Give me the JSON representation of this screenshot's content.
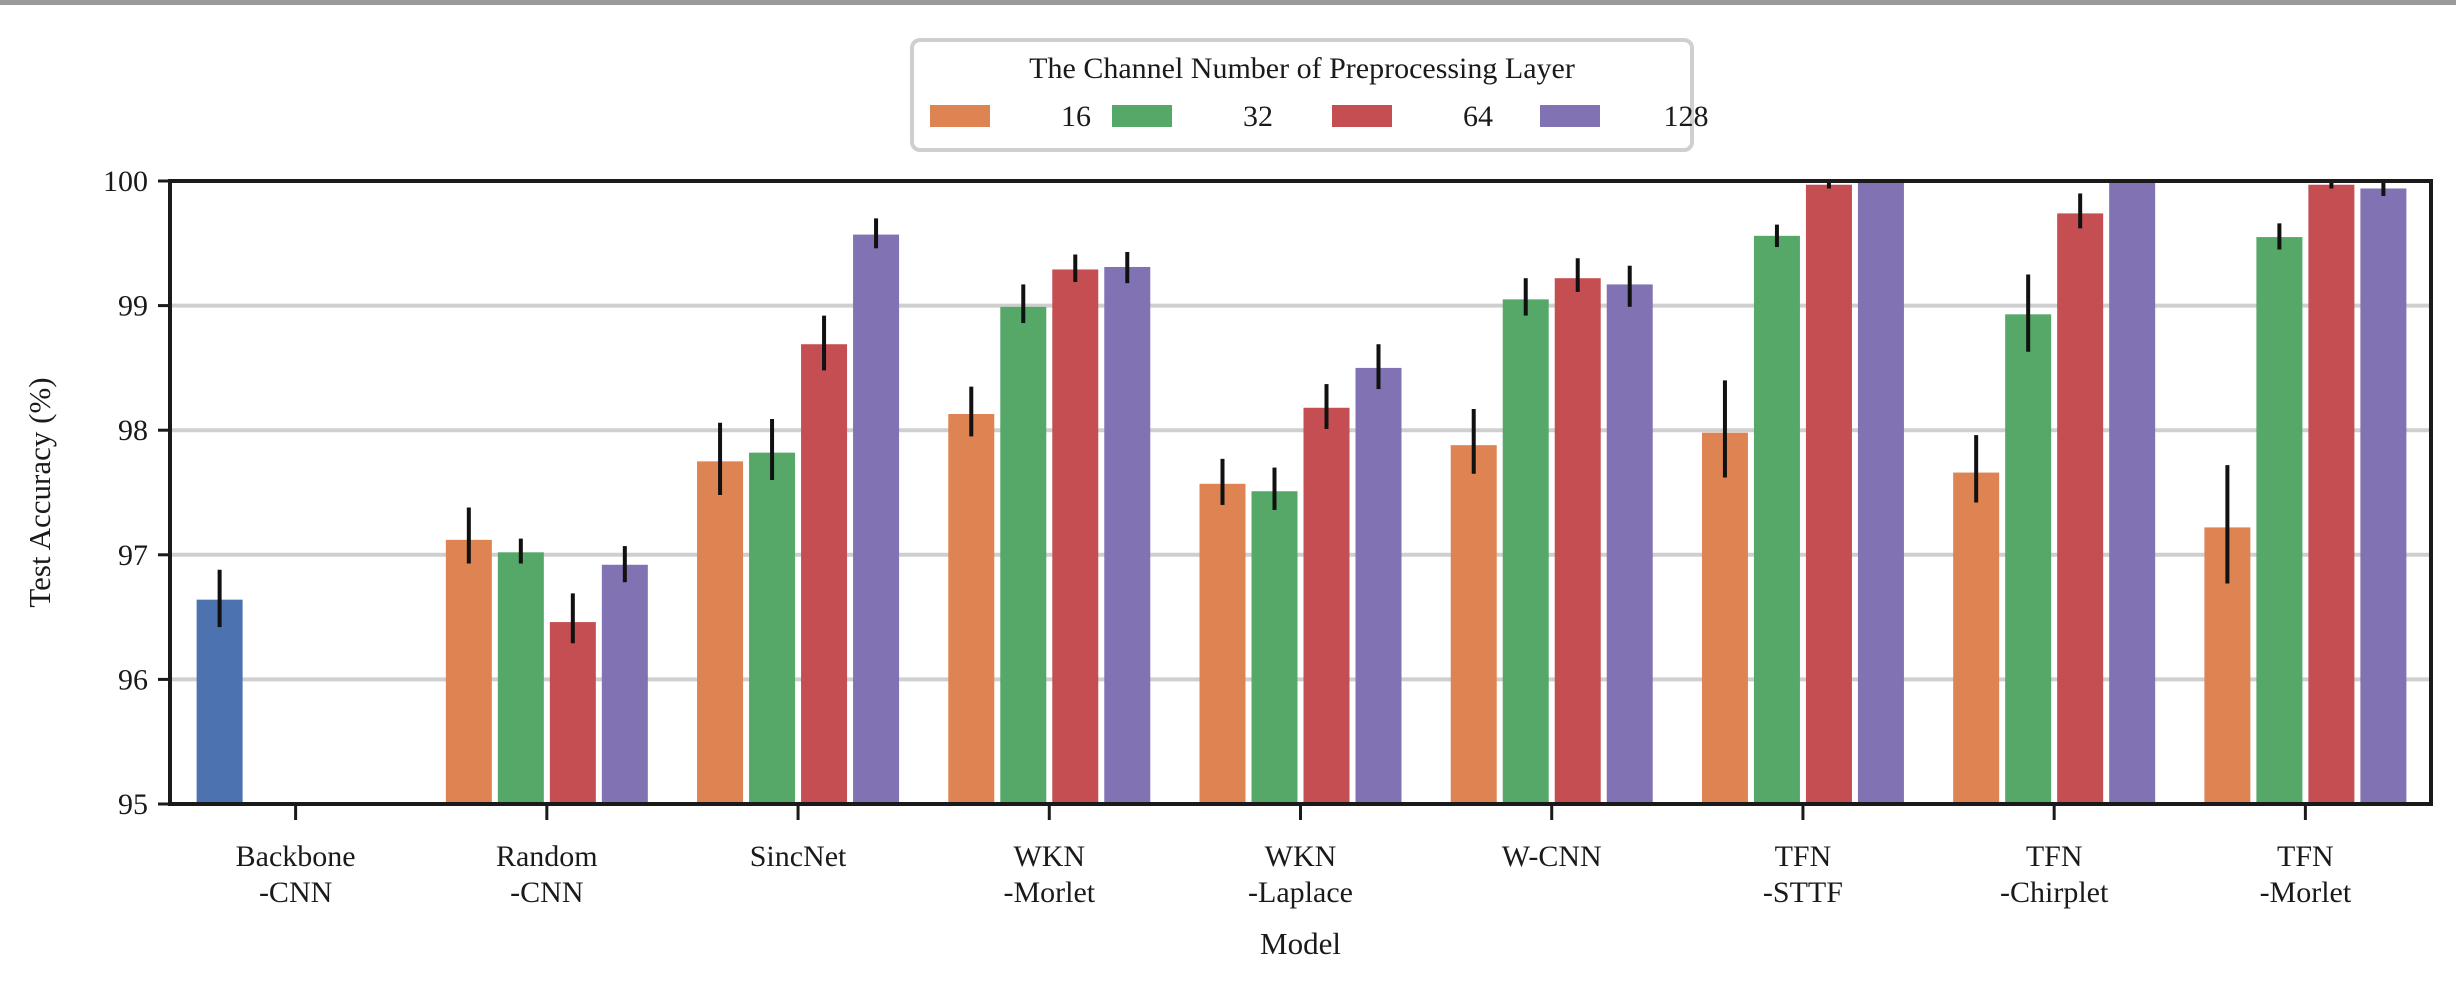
{
  "chart_data": {
    "type": "bar",
    "xlabel": "Model",
    "ylabel": "Test Accuracy (%)",
    "ylim": [
      95,
      100
    ],
    "yticks": [
      95,
      96,
      97,
      98,
      99,
      100
    ],
    "grid": "horizontal",
    "legend": {
      "title": "The Channel Number of Preprocessing Layer",
      "placement": "top-center"
    },
    "categories": [
      [
        "Backbone",
        "-CNN"
      ],
      [
        "Random",
        "-CNN"
      ],
      [
        "SincNet"
      ],
      [
        "WKN",
        "-Morlet"
      ],
      [
        "WKN",
        "-Laplace"
      ],
      [
        "W-CNN"
      ],
      [
        "TFN",
        "-STTF"
      ],
      [
        "TFN",
        "-Chirplet"
      ],
      [
        "TFN",
        "-Morlet"
      ]
    ],
    "baseline": {
      "color": "#4c72b0",
      "value": 96.64,
      "error": [
        96.42,
        96.88
      ]
    },
    "series": [
      {
        "name": "16",
        "color": "#dd8452",
        "values": [
          null,
          97.12,
          97.75,
          98.13,
          97.57,
          97.88,
          97.98,
          97.66,
          97.22
        ],
        "errors": [
          null,
          [
            96.93,
            97.38
          ],
          [
            97.48,
            98.06
          ],
          [
            97.95,
            98.35
          ],
          [
            97.4,
            97.77
          ],
          [
            97.65,
            98.17
          ],
          [
            97.62,
            98.4
          ],
          [
            97.42,
            97.96
          ],
          [
            96.77,
            97.72
          ]
        ]
      },
      {
        "name": "32",
        "color": "#55a868",
        "values": [
          null,
          97.02,
          97.82,
          98.99,
          97.51,
          99.05,
          99.56,
          98.93,
          99.55
        ],
        "errors": [
          null,
          [
            96.93,
            97.13
          ],
          [
            97.6,
            98.09
          ],
          [
            98.86,
            99.17
          ],
          [
            97.36,
            97.7
          ],
          [
            98.92,
            99.22
          ],
          [
            99.47,
            99.65
          ],
          [
            98.63,
            99.25
          ],
          [
            99.45,
            99.66
          ]
        ]
      },
      {
        "name": "64",
        "color": "#c44e52",
        "values": [
          null,
          96.46,
          98.69,
          99.29,
          98.18,
          99.22,
          99.97,
          99.74,
          99.97
        ],
        "errors": [
          null,
          [
            96.29,
            96.69
          ],
          [
            98.48,
            98.92
          ],
          [
            99.19,
            99.41
          ],
          [
            98.01,
            98.37
          ],
          [
            99.11,
            99.38
          ],
          [
            99.94,
            100.0
          ],
          [
            99.62,
            99.9
          ],
          [
            99.94,
            100.0
          ]
        ]
      },
      {
        "name": "128",
        "color": "#8172b3",
        "values": [
          null,
          96.92,
          99.57,
          99.31,
          98.5,
          99.17,
          99.99,
          99.99,
          99.94
        ],
        "errors": [
          null,
          [
            96.78,
            97.07
          ],
          [
            99.46,
            99.7
          ],
          [
            99.18,
            99.43
          ],
          [
            98.33,
            98.69
          ],
          [
            98.99,
            99.32
          ],
          [
            99.99,
            99.99
          ],
          [
            99.99,
            99.99
          ],
          [
            99.88,
            100.0
          ]
        ]
      }
    ]
  }
}
